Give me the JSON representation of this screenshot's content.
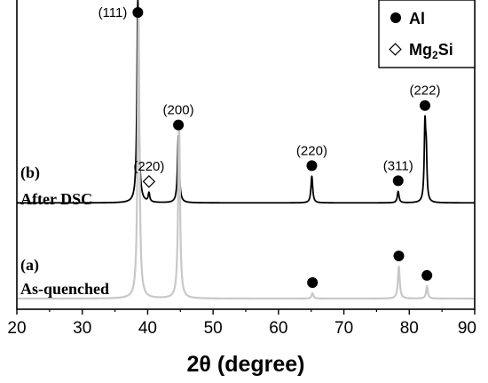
{
  "chart_data": {
    "type": "line",
    "title": "",
    "xlabel": "2θ (degree)",
    "ylabel": "",
    "xlim": [
      20,
      90
    ],
    "x_ticks": [
      20,
      30,
      40,
      50,
      60,
      70,
      80,
      90
    ],
    "grid": false,
    "legend_position": "top-right",
    "legend": [
      {
        "marker": "filled-circle",
        "label": "Al"
      },
      {
        "marker": "open-diamond",
        "label": "Mg",
        "sub": "2",
        "suffix": "Si"
      }
    ],
    "series": [
      {
        "name": "(b) After DSC",
        "sample_label": "(b)",
        "sample_desc": "After DSC",
        "color": "#000000",
        "baseline": 0.34,
        "peaks": [
          {
            "x": 38.5,
            "height": 8.0,
            "width": 0.16
          },
          {
            "x": 40.2,
            "height": 0.35,
            "width": 0.14
          },
          {
            "x": 44.7,
            "height": 2.65,
            "width": 0.16
          },
          {
            "x": 65.1,
            "height": 1.05,
            "width": 0.16
          },
          {
            "x": 78.3,
            "height": 0.45,
            "width": 0.16
          },
          {
            "x": 82.4,
            "height": 3.0,
            "width": 0.14
          },
          {
            "x": 82.6,
            "height": 1.6,
            "width": 0.12
          }
        ]
      },
      {
        "name": "(a) As-quenched",
        "sample_label": "(a)",
        "sample_desc": "As-quenched",
        "color": "#c8c8c8",
        "baseline": 0.1,
        "peaks": [
          {
            "x": 38.6,
            "height": 8.0,
            "width": 0.17
          },
          {
            "x": 44.8,
            "height": 5.0,
            "width": 0.17
          },
          {
            "x": 65.2,
            "height": 0.15,
            "width": 0.16
          },
          {
            "x": 78.4,
            "height": 0.9,
            "width": 0.17
          },
          {
            "x": 82.7,
            "height": 0.35,
            "width": 0.16
          }
        ]
      }
    ],
    "annotations": [
      {
        "label": "(111)",
        "marker": "filled-circle",
        "x": 38.5,
        "series": 0
      },
      {
        "label": "(220)",
        "marker": "open-diamond",
        "x": 40.2,
        "series": 0
      },
      {
        "label": "(200)",
        "marker": "filled-circle",
        "x": 44.7,
        "series": 0
      },
      {
        "label": "(220)",
        "marker": "filled-circle",
        "x": 65.1,
        "series": 0
      },
      {
        "label": "(311)",
        "marker": "filled-circle",
        "x": 78.3,
        "series": 0
      },
      {
        "label": "(222)",
        "marker": "filled-circle",
        "x": 82.4,
        "series": 0
      },
      {
        "label": "",
        "marker": "filled-circle",
        "x": 65.2,
        "series": 1
      },
      {
        "label": "",
        "marker": "filled-circle",
        "x": 78.4,
        "series": 1
      },
      {
        "label": "",
        "marker": "filled-circle",
        "x": 82.7,
        "series": 1
      }
    ]
  }
}
